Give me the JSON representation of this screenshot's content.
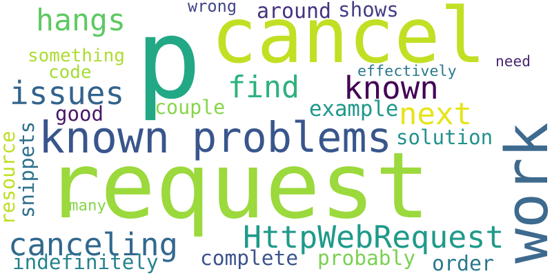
{
  "words": [
    {
      "text": "request",
      "color": "#9bd93c",
      "vertical": false
    },
    {
      "text": "p",
      "color": "#22a884",
      "vertical": false
    },
    {
      "text": "cancel",
      "color": "#c2df23",
      "vertical": false
    },
    {
      "text": "work",
      "color": "#3e6a8e",
      "vertical": true
    },
    {
      "text": "known",
      "color": "#39558c",
      "vertical": false
    },
    {
      "text": "problems",
      "color": "#39568c",
      "vertical": false
    },
    {
      "text": "HttpWebRequest",
      "color": "#1f9a8a",
      "vertical": false
    },
    {
      "text": "canceling",
      "color": "#31688e",
      "vertical": false
    },
    {
      "text": "issues",
      "color": "#33638d",
      "vertical": false
    },
    {
      "text": "known",
      "color": "#440154",
      "vertical": false
    },
    {
      "text": "next",
      "color": "#e6e419",
      "vertical": false
    },
    {
      "text": "find",
      "color": "#2db27d",
      "vertical": false
    },
    {
      "text": "hangs",
      "color": "#5ec962",
      "vertical": false
    },
    {
      "text": "indefinitely",
      "color": "#26828e",
      "vertical": false
    },
    {
      "text": "complete",
      "color": "#3b528b",
      "vertical": false
    },
    {
      "text": "probably",
      "color": "#7ad151",
      "vertical": false
    },
    {
      "text": "order",
      "color": "#2a788e",
      "vertical": false
    },
    {
      "text": "solution",
      "color": "#21918c",
      "vertical": false
    },
    {
      "text": "example",
      "color": "#1f988b",
      "vertical": false
    },
    {
      "text": "couple",
      "color": "#86d549",
      "vertical": false
    },
    {
      "text": "good",
      "color": "#481668",
      "vertical": false
    },
    {
      "text": "code",
      "color": "#a5db36",
      "vertical": false
    },
    {
      "text": "something",
      "color": "#addc30",
      "vertical": false
    },
    {
      "text": "resource",
      "color": "#bddf26",
      "vertical": true
    },
    {
      "text": "snippets",
      "color": "#2c718e",
      "vertical": true
    },
    {
      "text": "many",
      "color": "#86d549",
      "vertical": false
    },
    {
      "text": "effectively",
      "color": "#2a788e",
      "vertical": false
    },
    {
      "text": "need",
      "color": "#482576",
      "vertical": false
    },
    {
      "text": "wrong",
      "color": "#414487",
      "vertical": false
    },
    {
      "text": "around",
      "color": "#46327e",
      "vertical": false
    },
    {
      "text": "shows",
      "color": "#433e85",
      "vertical": false
    }
  ]
}
